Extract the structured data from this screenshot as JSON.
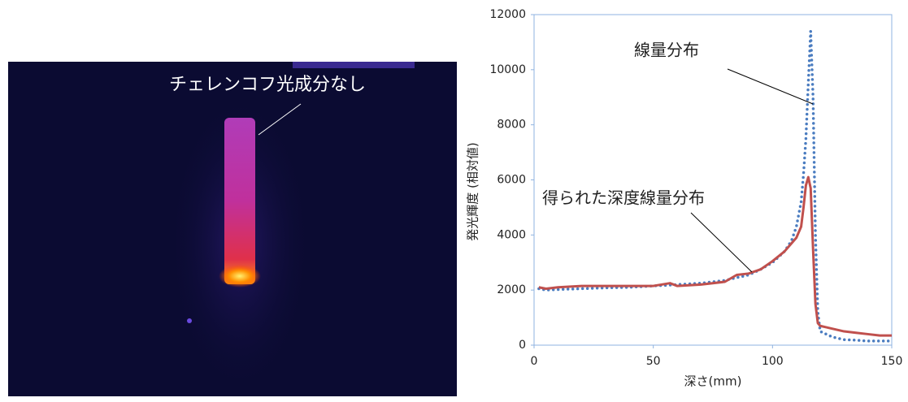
{
  "image": {
    "annotation": "チェレンコフ光成分なし"
  },
  "chart_data": {
    "type": "line",
    "x_label": "深さ(mm)",
    "y_label": "発光輝度 (相対値)",
    "x": [
      2,
      5,
      10,
      20,
      30,
      40,
      50,
      57,
      60,
      70,
      80,
      85,
      90,
      95,
      100,
      105,
      108,
      110,
      112,
      113,
      114,
      115,
      116,
      117,
      118,
      119,
      120,
      125,
      130,
      135,
      140,
      145,
      150
    ],
    "series": [
      {
        "name": "線量分布",
        "color": "#4a7cc0",
        "line_style": "dotted",
        "values": [
          2050,
          2000,
          2020,
          2050,
          2080,
          2100,
          2150,
          2180,
          2200,
          2250,
          2350,
          2450,
          2550,
          2750,
          3000,
          3400,
          3800,
          4300,
          5200,
          6200,
          7500,
          9500,
          11400,
          9000,
          4000,
          1200,
          500,
          300,
          200,
          180,
          150,
          150,
          150
        ]
      },
      {
        "name": "得られた深度線量分布",
        "color": "#c0504d",
        "line_style": "solid",
        "values": [
          2100,
          2050,
          2100,
          2150,
          2150,
          2150,
          2150,
          2250,
          2150,
          2200,
          2300,
          2550,
          2600,
          2750,
          3050,
          3400,
          3700,
          3900,
          4300,
          5000,
          5800,
          6100,
          5700,
          3500,
          1500,
          800,
          700,
          600,
          500,
          450,
          400,
          350,
          350
        ]
      }
    ],
    "xlim": [
      0,
      150
    ],
    "xticks": [
      0,
      50,
      100,
      150
    ],
    "ylim": [
      0,
      12000
    ],
    "yticks": [
      0,
      2000,
      4000,
      6000,
      8000,
      10000,
      12000
    ],
    "grid": false
  }
}
